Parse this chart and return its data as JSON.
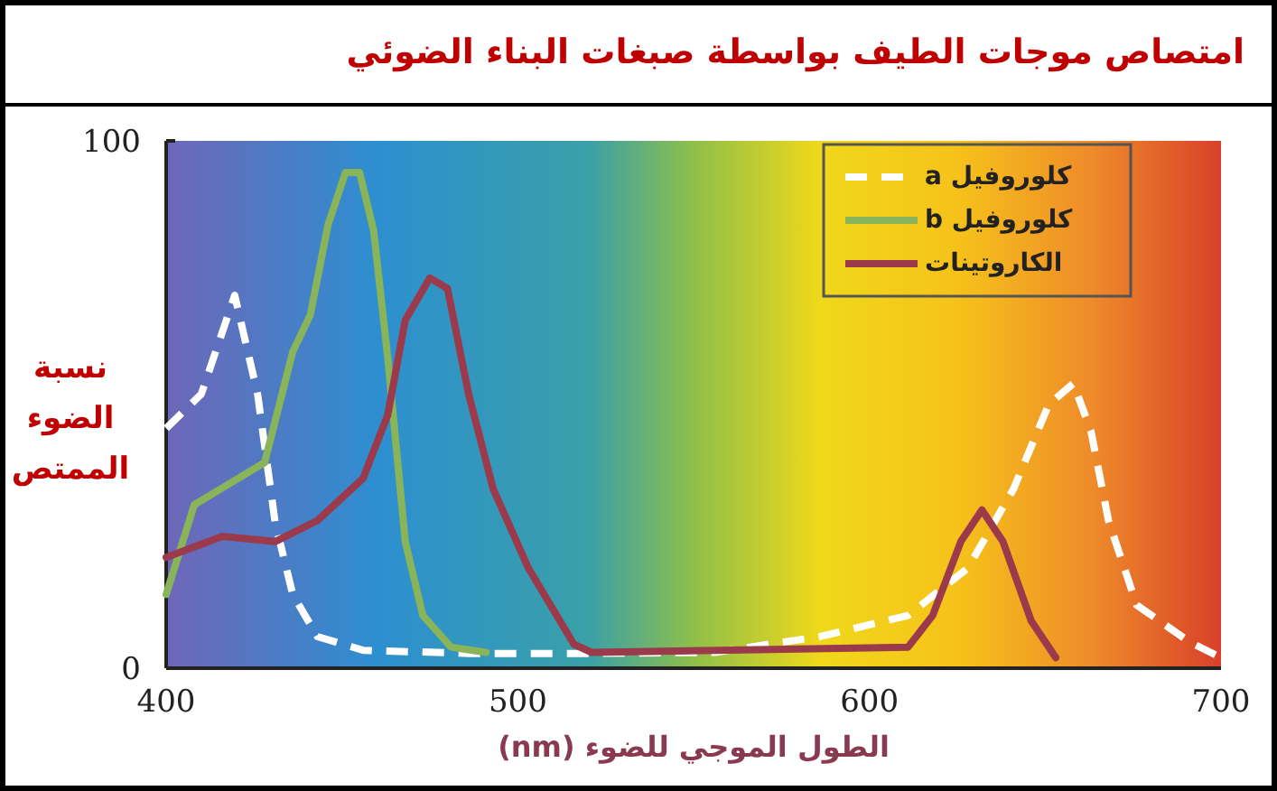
{
  "chart_data": {
    "type": "line",
    "title": "امتصاص موجات الطيف بواسطة صبغات البناء الضوئي",
    "xlabel": "الطول الموجي للضوء (nm)",
    "ylabel": "نسبة الضوء الممتص",
    "xlim": [
      400,
      700
    ],
    "ylim": [
      0,
      100
    ],
    "xticks": [
      400,
      500,
      600,
      700
    ],
    "yticks": [
      0,
      100
    ],
    "legend": "top right",
    "series": [
      {
        "name": "كلوروفيل a",
        "color": "#ffffff",
        "line_style": "dashed",
        "x": [
          400,
          410,
          419.5,
          426,
          431,
          436,
          443,
          456,
          486,
          520,
          556,
          586,
          611,
          628,
          641,
          651,
          658,
          663,
          668,
          676,
          691,
          700
        ],
        "values": [
          45.5,
          52,
          70.7,
          52,
          27.6,
          14,
          6,
          3.4,
          2.8,
          2.8,
          3,
          6,
          10,
          19,
          34,
          50,
          54,
          45,
          28,
          12,
          5,
          2
        ]
      },
      {
        "name": "كلوروفيل b",
        "color": "#8ab45a",
        "line_style": "solid",
        "x": [
          400,
          408,
          418,
          428,
          436,
          441,
          446,
          451,
          455,
          459,
          463,
          468,
          473,
          481,
          491
        ],
        "values": [
          14,
          31,
          35,
          39,
          60,
          67,
          84,
          94,
          94,
          83,
          59,
          24,
          10,
          4,
          3
        ]
      },
      {
        "name": "الكاروتينات",
        "color": "#9b3a4a",
        "line_style": "solid",
        "x": [
          400,
          416,
          431,
          443,
          456,
          463,
          468,
          475,
          480,
          486,
          493,
          503,
          516,
          521,
          611,
          618,
          626,
          632,
          638,
          646,
          653
        ],
        "values": [
          21,
          25,
          24,
          28,
          36,
          48,
          66,
          74,
          72,
          52,
          34,
          19,
          4.5,
          3,
          4,
          10,
          24,
          30,
          24,
          9,
          2
        ]
      }
    ]
  }
}
